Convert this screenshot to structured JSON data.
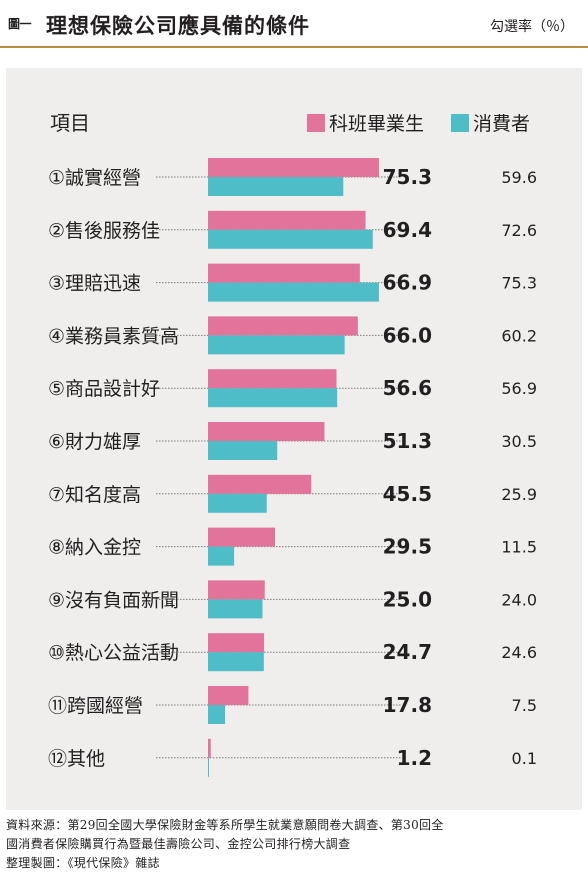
{
  "header": {
    "figure_label": "圖一",
    "title": "理想保險公司應具備的條件",
    "unit": "勾選率（％）"
  },
  "colors": {
    "graduates": "#e2739a",
    "consumers": "#4fbdc8",
    "panel": "#efeeed",
    "rule": "#b88d43"
  },
  "chart_data": {
    "type": "bar",
    "orientation": "horizontal",
    "category_header": "項目",
    "categories": [
      "①誠實經營",
      "②售後服務佳",
      "③理賠迅速",
      "④業務員素質高",
      "⑤商品設計好",
      "⑥財力雄厚",
      "⑦知名度高",
      "⑧納入金控",
      "⑨沒有負面新聞",
      "⑩熱心公益活動",
      "⑪跨國經營",
      "⑫其他"
    ],
    "series": [
      {
        "name": "科班畢業生",
        "color": "#e2739a",
        "values": [
          75.3,
          69.4,
          66.9,
          66.0,
          56.6,
          51.3,
          45.5,
          29.5,
          25.0,
          24.7,
          17.8,
          1.2
        ],
        "labels": [
          "75.3",
          "69.4",
          "66.9",
          "66.0",
          "56.6",
          "51.3",
          "45.5",
          "29.5",
          "25.0",
          "24.7",
          "17.8",
          "1.2"
        ]
      },
      {
        "name": "消費者",
        "color": "#4fbdc8",
        "values": [
          59.6,
          72.6,
          75.3,
          60.2,
          56.9,
          30.5,
          25.9,
          11.5,
          24.0,
          24.6,
          7.5,
          0.1
        ],
        "labels": [
          "59.6",
          "72.6",
          "75.3",
          "60.2",
          "56.9",
          "30.5",
          "25.9",
          "11.5",
          "24.0",
          "24.6",
          "7.5",
          "0.1"
        ]
      }
    ],
    "xlim": [
      0,
      100
    ],
    "legend": "top-right",
    "grid": false
  },
  "source": {
    "line1": "資料來源：第29回全國大學保險財金等系所學生就業意願問卷大調查、第30回全",
    "line2": "國消費者保險購買行為暨最佳壽險公司、金控公司排行榜大調查",
    "line3": "整理製圖：《現代保險》雜誌"
  }
}
